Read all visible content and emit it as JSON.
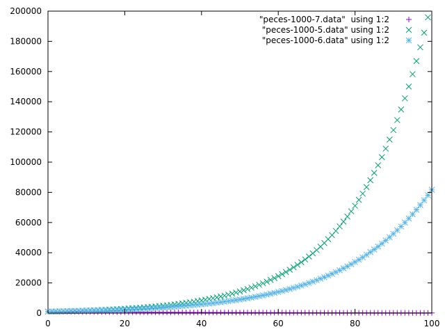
{
  "chart_data": {
    "type": "scatter",
    "title": "",
    "xlabel": "",
    "ylabel": "",
    "xlim": [
      0,
      100
    ],
    "ylim": [
      0,
      200000
    ],
    "xticks": [
      0,
      20,
      40,
      60,
      80,
      100
    ],
    "yticks": [
      0,
      20000,
      40000,
      60000,
      80000,
      100000,
      120000,
      140000,
      160000,
      180000,
      200000
    ],
    "grid": false,
    "legend_position": "top-right",
    "x": [
      0,
      1,
      2,
      3,
      4,
      5,
      6,
      7,
      8,
      9,
      10,
      11,
      12,
      13,
      14,
      15,
      16,
      17,
      18,
      19,
      20,
      21,
      22,
      23,
      24,
      25,
      26,
      27,
      28,
      29,
      30,
      31,
      32,
      33,
      34,
      35,
      36,
      37,
      38,
      39,
      40,
      41,
      42,
      43,
      44,
      45,
      46,
      47,
      48,
      49,
      50,
      51,
      52,
      53,
      54,
      55,
      56,
      57,
      58,
      59,
      60,
      61,
      62,
      63,
      64,
      65,
      66,
      67,
      68,
      69,
      70,
      71,
      72,
      73,
      74,
      75,
      76,
      77,
      78,
      79,
      80,
      81,
      82,
      83,
      84,
      85,
      86,
      87,
      88,
      89,
      90,
      91,
      92,
      93,
      94,
      95,
      96,
      97,
      98,
      99,
      100
    ],
    "series": [
      {
        "name": "\"peces-1000-7.data\"  using 1:2",
        "marker": "plus",
        "color": "#9400d3",
        "values": [
          1000,
          980,
          960,
          941,
          922,
          904,
          886,
          868,
          851,
          834,
          817,
          801,
          785,
          769,
          754,
          739,
          724,
          709,
          695,
          681,
          668,
          654,
          641,
          628,
          616,
          603,
          591,
          580,
          568,
          557,
          545,
          534,
          524,
          513,
          503,
          493,
          483,
          474,
          464,
          455,
          446,
          437,
          428,
          420,
          411,
          403,
          395,
          387,
          379,
          372,
          364,
          357,
          350,
          343,
          336,
          329,
          323,
          316,
          310,
          304,
          298,
          292,
          286,
          280,
          274,
          269,
          264,
          258,
          253,
          248,
          243,
          238,
          233,
          229,
          224,
          220,
          215,
          211,
          207,
          203,
          199,
          195,
          191,
          187,
          183,
          179,
          176,
          172,
          169,
          165,
          162,
          159,
          156,
          152,
          149,
          146,
          143,
          141,
          138,
          135,
          132
        ]
      },
      {
        "name": "\"peces-1000-5.data\" using 1:2",
        "marker": "cross",
        "color": "#009e73",
        "values": [
          1000,
          1054,
          1112,
          1173,
          1237,
          1305,
          1376,
          1451,
          1531,
          1614,
          1703,
          1796,
          1894,
          1998,
          2107,
          2223,
          2344,
          2473,
          2608,
          2751,
          2902,
          3060,
          3228,
          3405,
          3591,
          3788,
          3995,
          4214,
          4444,
          4688,
          4944,
          5215,
          5501,
          5802,
          6120,
          6455,
          6808,
          7181,
          7574,
          7989,
          8426,
          8888,
          9374,
          9888,
          10429,
          11000,
          11603,
          12238,
          12909,
          13616,
          14362,
          15148,
          15978,
          16853,
          17776,
          18750,
          19777,
          20860,
          22003,
          23208,
          24479,
          25820,
          27234,
          28726,
          30299,
          31959,
          33709,
          35556,
          37503,
          39557,
          41724,
          44009,
          46420,
          48963,
          51644,
          54473,
          57457,
          60604,
          63924,
          67425,
          71118,
          75014,
          79123,
          83456,
          88028,
          92849,
          97935,
          103299,
          108957,
          114925,
          121220,
          127860,
          134864,
          142251,
          150042,
          158261,
          166930,
          176073,
          185717,
          195890,
          206619
        ]
      },
      {
        "name": "\"peces-1000-6.data\" using 1:2",
        "marker": "star",
        "color": "#56b4e9",
        "values": [
          1000,
          1045,
          1092,
          1141,
          1193,
          1246,
          1302,
          1361,
          1422,
          1486,
          1553,
          1623,
          1696,
          1773,
          1852,
          1936,
          2023,
          2114,
          2209,
          2308,
          2412,
          2521,
          2634,
          2753,
          2877,
          3006,
          3142,
          3283,
          3431,
          3585,
          3747,
          3915,
          4091,
          4276,
          4468,
          4669,
          4879,
          5099,
          5328,
          5568,
          5818,
          6080,
          6354,
          6640,
          6939,
          7251,
          7577,
          7918,
          8275,
          8647,
          9036,
          9443,
          9868,
          10312,
          10776,
          11261,
          11768,
          12297,
          12851,
          13429,
          14034,
          14665,
          15325,
          16015,
          16736,
          17489,
          18276,
          19098,
          19958,
          20856,
          21794,
          22775,
          23800,
          24871,
          25990,
          27160,
          28382,
          29659,
          30994,
          32389,
          33846,
          35369,
          36961,
          38624,
          40362,
          42179,
          44077,
          46060,
          48133,
          50299,
          52563,
          54928,
          57400,
          59983,
          62682,
          65503,
          68450,
          71531,
          74749,
          78113,
          81628
        ]
      }
    ]
  }
}
